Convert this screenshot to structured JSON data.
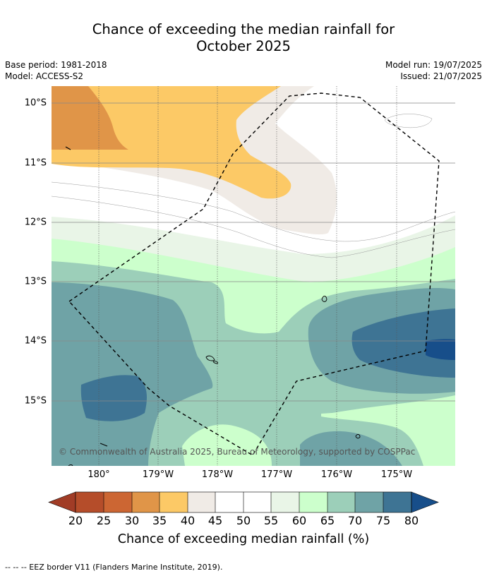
{
  "title_line1": "Chance of exceeding the median rainfall for",
  "title_line2": "October 2025",
  "meta": {
    "base_period": "Base period: 1981-2018",
    "model": "Model: ACCESS-S2",
    "model_run": "Model run: 19/07/2025",
    "issued": "Issued: 21/07/2025"
  },
  "axes": {
    "lat_labels": [
      "10°S",
      "11°S",
      "12°S",
      "13°S",
      "14°S",
      "15°S"
    ],
    "lon_labels": [
      "180°",
      "179°W",
      "178°W",
      "177°W",
      "176°W",
      "175°W"
    ]
  },
  "copyright": "© Commonwealth of Australia 2025, Bureau of Meteorology, supported by COSPPac",
  "colorbar": {
    "labels": [
      "20",
      "25",
      "30",
      "35",
      "40",
      "45",
      "50",
      "55",
      "60",
      "65",
      "70",
      "75",
      "80"
    ],
    "colors": [
      "#a13c26",
      "#b54d2a",
      "#cc6633",
      "#e09548",
      "#fcc966",
      "#f0ebe6",
      "#ffffff",
      "#ffffff",
      "#e9f5e7",
      "#ccffcc",
      "#9ccfb9",
      "#6fa3a6",
      "#3e7494",
      "#174e8a"
    ],
    "title": "Chance of exceeding median rainfall (%)"
  },
  "footnote": "--  --  -- EEZ border V11 (Flanders Marine Institute, 2019)."
}
